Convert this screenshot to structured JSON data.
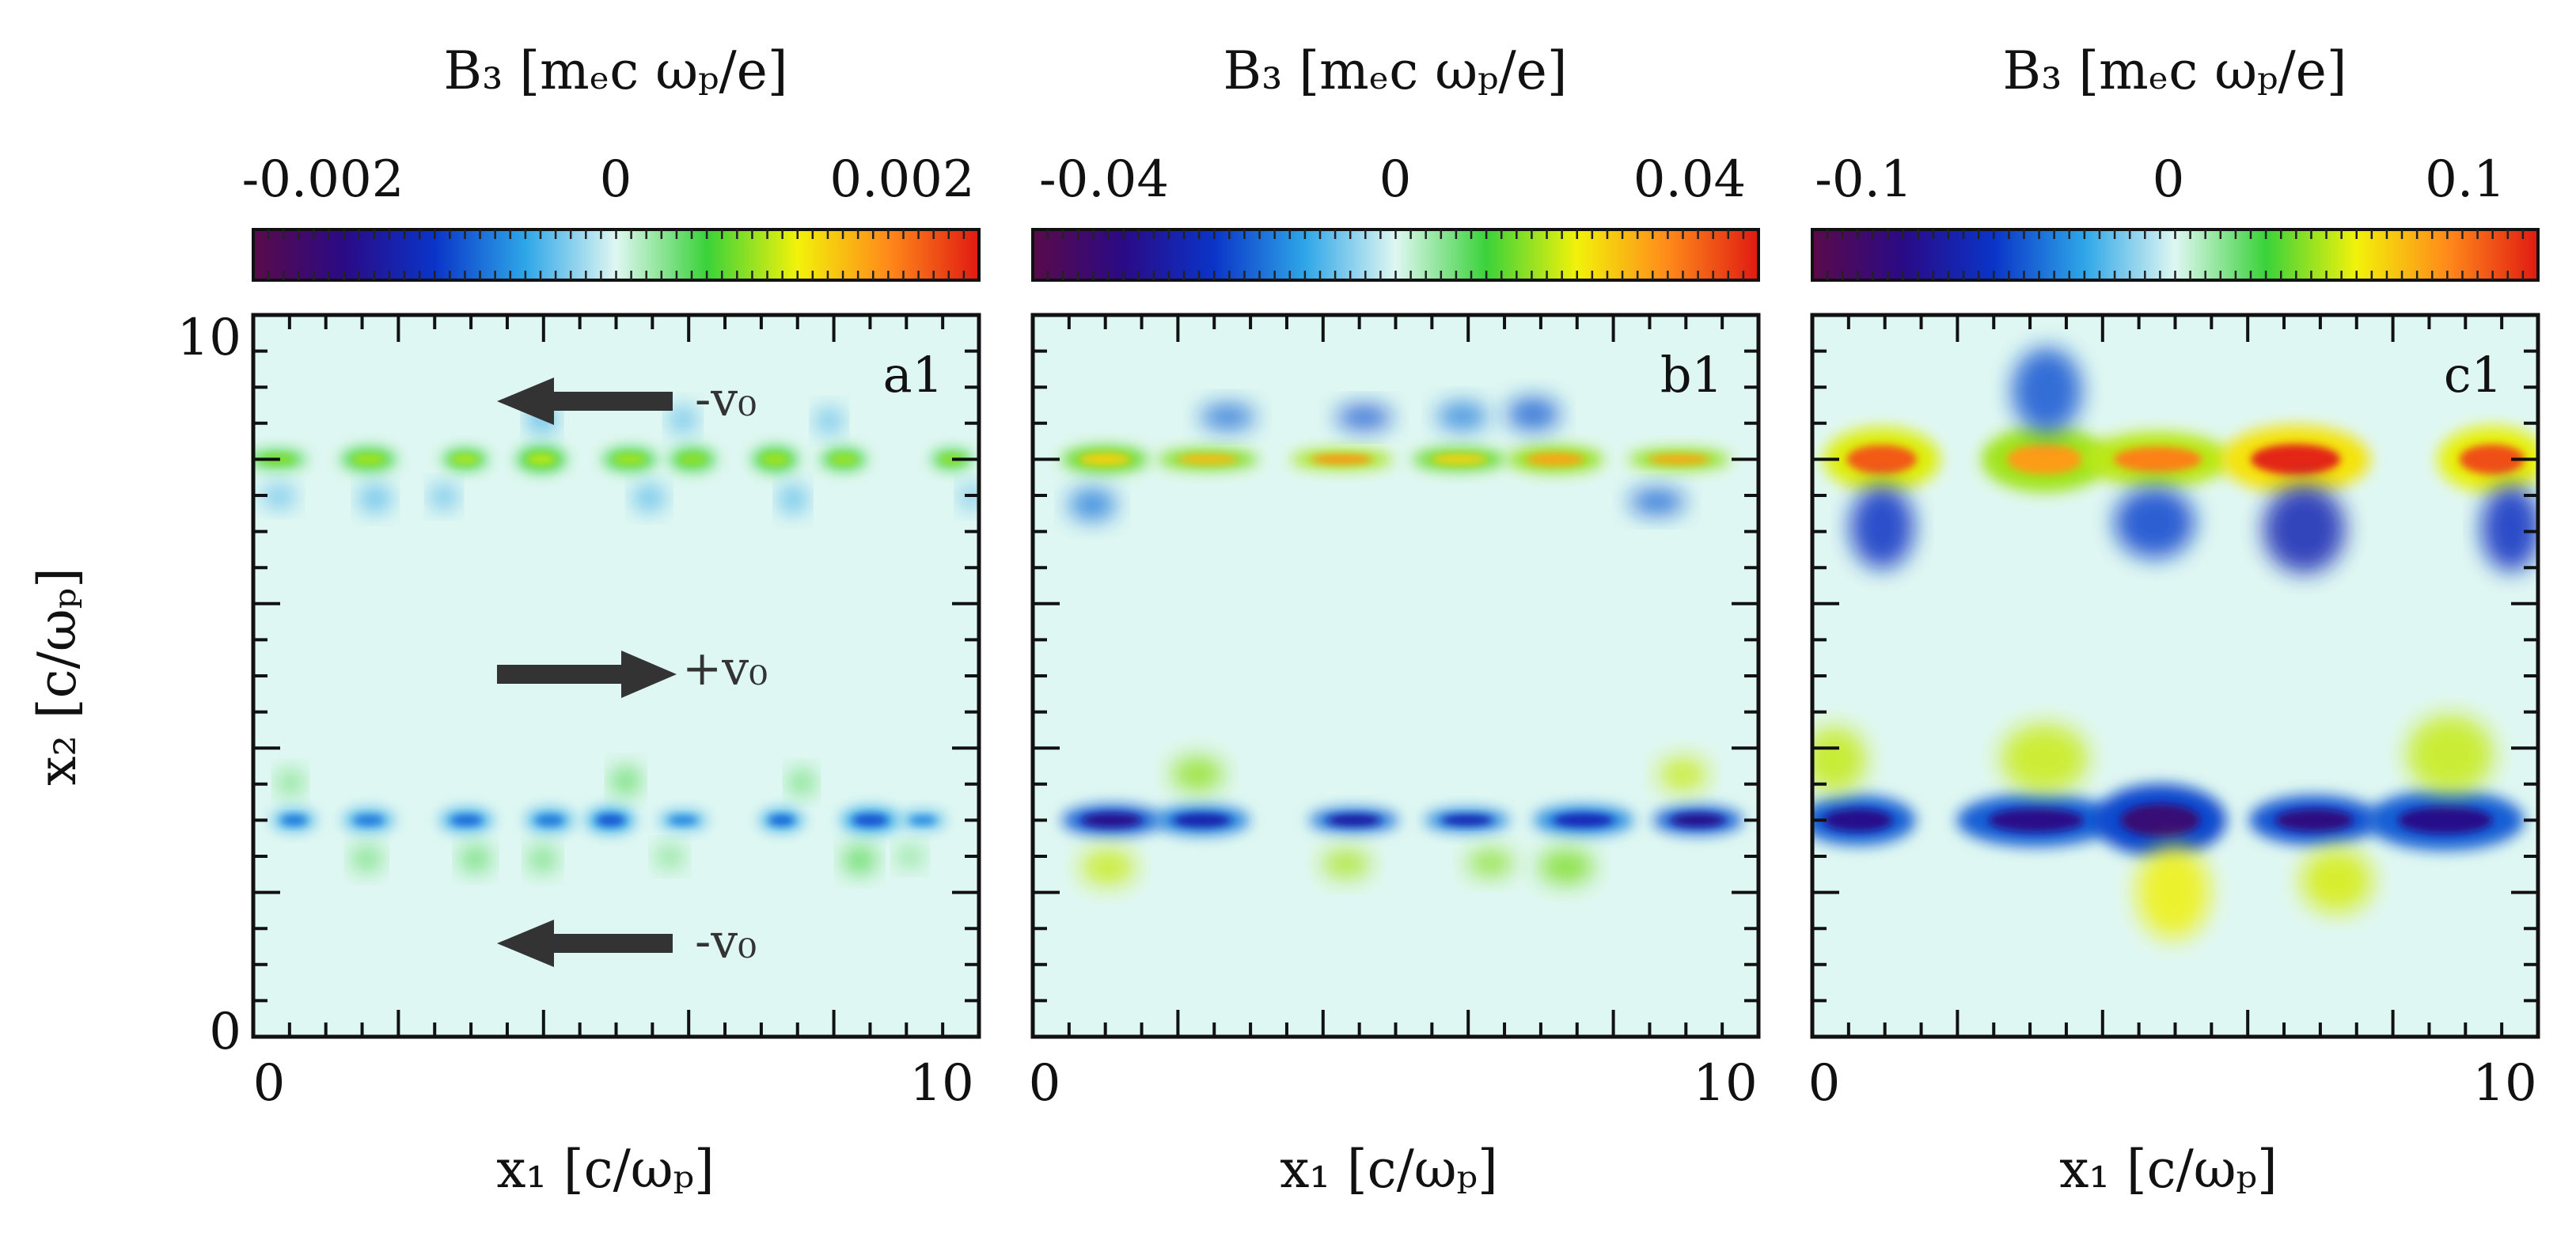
{
  "chart_data": {
    "type": "heatmap",
    "shared": {
      "colorbar_label": "B₃ [mₑc ωₚ/e]",
      "xlabel": "x₁ [c/ωₚ]",
      "ylabel": "x₂ [c/ωₚ]",
      "xlim": [
        0,
        10
      ],
      "ylim": [
        0,
        10
      ],
      "x_ticks": [
        "0",
        "10"
      ],
      "y_ticks": [
        "0",
        "10"
      ],
      "colormap": [
        "#5a0a4a",
        "#2a0a86",
        "#0a34c8",
        "#2ea6e8",
        "#dff7f2",
        "#3ad23a",
        "#f2f20a",
        "#ff8a1a",
        "#e01a12"
      ],
      "layer_positions_x2": [
        8,
        3
      ]
    },
    "panels": [
      {
        "id": "a1",
        "label": "a1",
        "colorbar_ticks": [
          "-0.002",
          "0",
          "0.002"
        ],
        "colorbar_range": [
          -0.0024,
          0.0024
        ],
        "peak_intensity": 0.45,
        "annotations": [
          "-v₀",
          "+v₀",
          "-v₀"
        ]
      },
      {
        "id": "b1",
        "label": "b1",
        "colorbar_ticks": [
          "-0.04",
          "0",
          "0.04"
        ],
        "colorbar_range": [
          -0.05,
          0.05
        ],
        "peak_intensity": 0.75
      },
      {
        "id": "c1",
        "label": "c1",
        "colorbar_ticks": [
          "-0.1",
          "0",
          "0.1"
        ],
        "colorbar_range": [
          -0.13,
          0.13
        ],
        "peak_intensity": 1.0
      }
    ]
  }
}
